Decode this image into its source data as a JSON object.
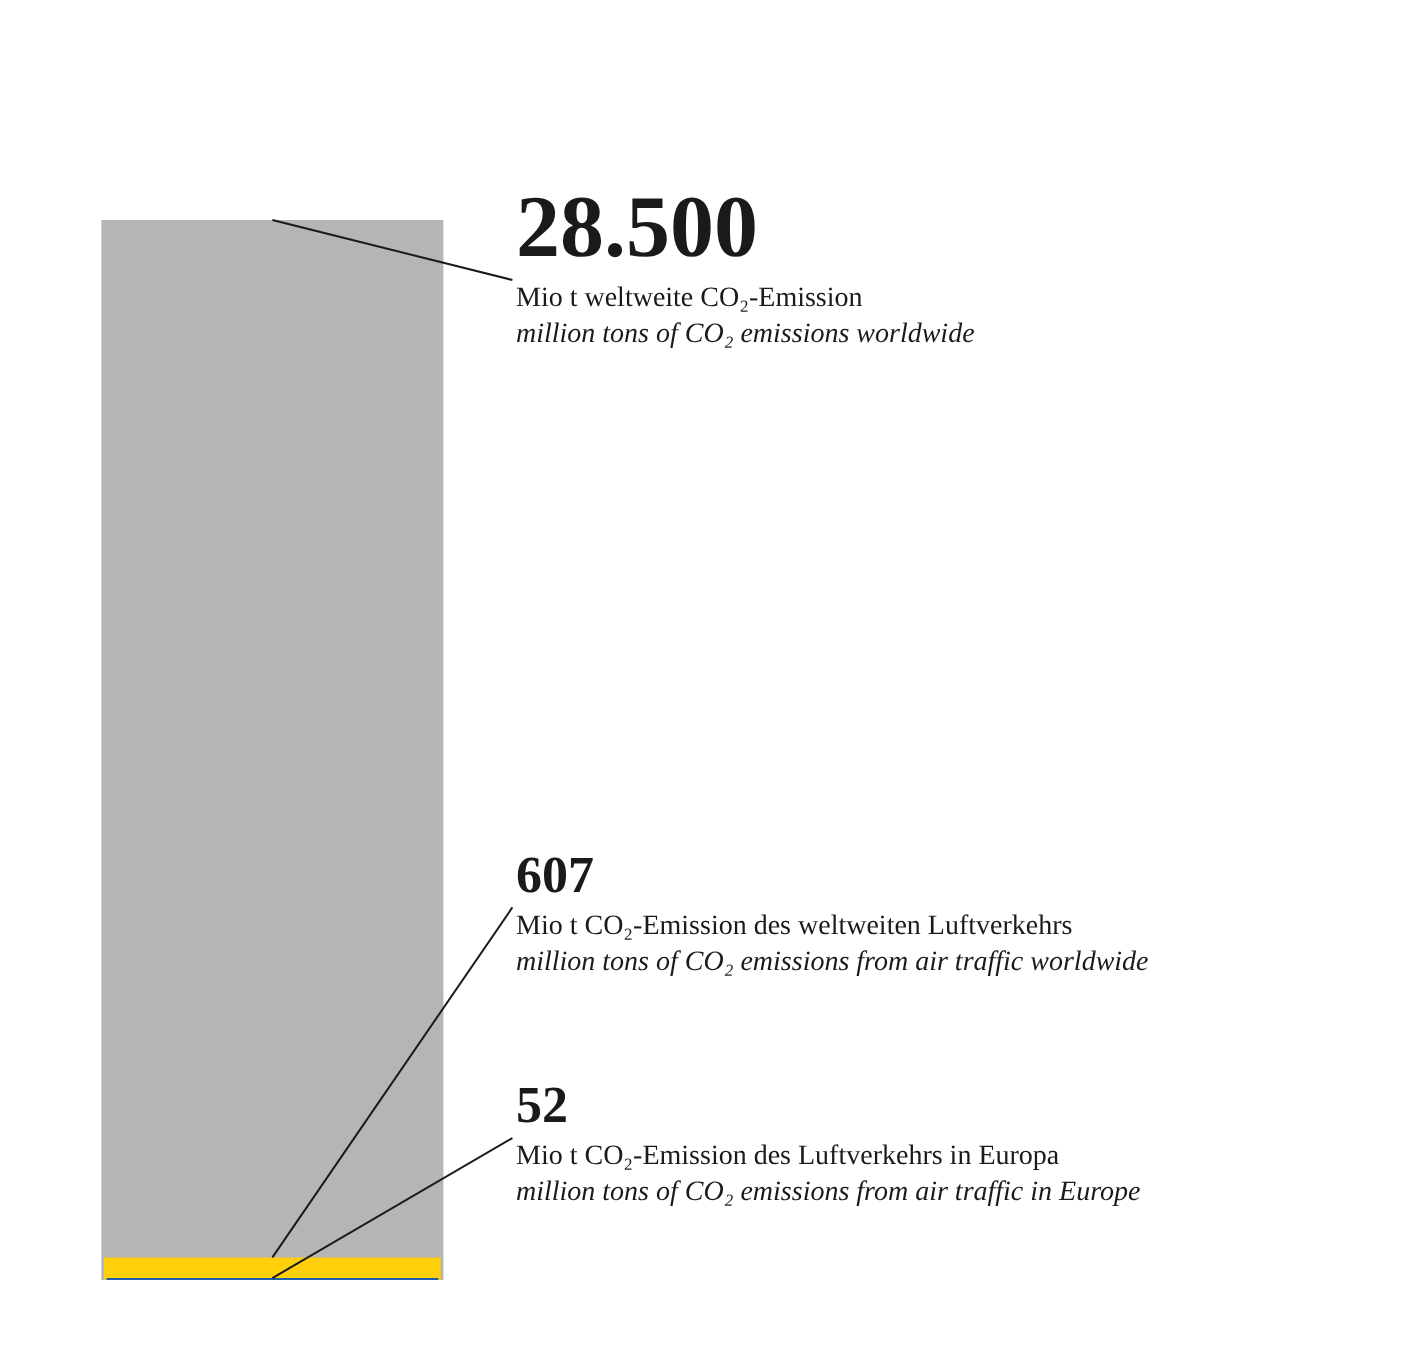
{
  "chart_data": {
    "type": "bar",
    "categories": [
      null
    ],
    "series": [
      {
        "color": "#b4b5b7",
        "values": [
          28500
        ],
        "value_labels": [
          "28.500"
        ]
      },
      {
        "color": "#fecf0a",
        "values": [
          607
        ],
        "value_labels": [
          "607"
        ]
      },
      {
        "color": "#1b5fa8",
        "values": [
          52
        ],
        "value_labels": [
          "52"
        ]
      }
    ],
    "annotations": [
      "Mio t weltweite CO₂-Emission\nmillion tons of CO₂ emissions worldwide",
      "Mio t CO₂-Emission des weltweiten Luftverkehrs\nmillion tons of CO₂ emissions from air traffic worldwide",
      "Mio t CO₂-Emission des Luftverkehrs in Europa\nmillion tons of CO₂ emissions from air traffic in Europe"
    ]
  }
}
